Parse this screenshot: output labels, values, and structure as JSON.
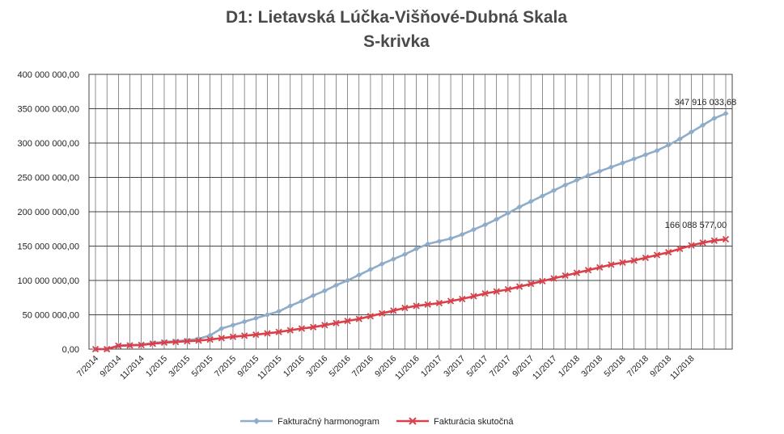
{
  "chart_data": {
    "type": "line",
    "title": "D1: Lietavská Lúčka-Višňové-Dubná Skala",
    "subtitle": "S-krivka",
    "xlabel": "",
    "ylabel": "",
    "ylim": [
      0,
      400000000
    ],
    "y_tick_step": 50000000,
    "y_tick_labels": [
      "0,00",
      "50 000 000,00",
      "100 000 000,00",
      "150 000 000,00",
      "200 000 000,00",
      "250 000 000,00",
      "300 000 000,00",
      "350 000 000,00",
      "400 000 000,00"
    ],
    "grid": true,
    "legend_position": "bottom",
    "x_tick_labels": [
      "7/2014",
      "9/2014",
      "11/2014",
      "1/2015",
      "3/2015",
      "5/2015",
      "7/2015",
      "9/2015",
      "11/2015",
      "1/2016",
      "3/2016",
      "5/2016",
      "7/2016",
      "9/2016",
      "11/2016",
      "1/2017",
      "3/2017",
      "5/2017",
      "7/2017",
      "9/2017",
      "11/2017",
      "1/2018",
      "3/2018",
      "5/2018",
      "7/2018",
      "9/2018",
      "11/2018"
    ],
    "series": [
      {
        "name": "Fakturačný harmonogram",
        "color": "#8fadc9",
        "marker": "diamond",
        "end_label": "347 916 033,68",
        "values": [
          0,
          0,
          5000000,
          6000000,
          6500000,
          9000000,
          10500000,
          11500000,
          13000000,
          15000000,
          20000000,
          30000000,
          35000000,
          40000000,
          45000000,
          50000000,
          55000000,
          63000000,
          70000000,
          78000000,
          85000000,
          93000000,
          100000000,
          108000000,
          116000000,
          124000000,
          131000000,
          138000000,
          146000000,
          153000000,
          157000000,
          161000000,
          167000000,
          174000000,
          181000000,
          189000000,
          198000000,
          207000000,
          215000000,
          223000000,
          231000000,
          239000000,
          246000000,
          253000000,
          259000000,
          265000000,
          271000000,
          277000000,
          283000000,
          289000000,
          297000000,
          306000000,
          316000000,
          326000000,
          336000000,
          343000000
        ]
      },
      {
        "name": "Fakturácia skutočná",
        "color": "#d9404a",
        "marker": "x",
        "end_label": "166 088 577,00",
        "values": [
          0,
          0,
          5000000,
          5500000,
          6000000,
          8000000,
          9500000,
          10500000,
          11500000,
          12500000,
          14000000,
          16000000,
          18000000,
          19500000,
          21000000,
          23000000,
          25000000,
          27500000,
          30000000,
          32000000,
          35000000,
          38000000,
          41000000,
          44000000,
          48000000,
          52000000,
          56000000,
          60000000,
          63000000,
          65000000,
          67000000,
          70000000,
          73000000,
          77000000,
          81000000,
          84000000,
          87000000,
          91000000,
          95000000,
          99000000,
          103000000,
          107000000,
          111000000,
          115000000,
          119000000,
          123000000,
          126000000,
          129000000,
          133000000,
          137000000,
          141000000,
          146000000,
          151000000,
          155000000,
          158000000,
          160000000
        ]
      }
    ]
  }
}
